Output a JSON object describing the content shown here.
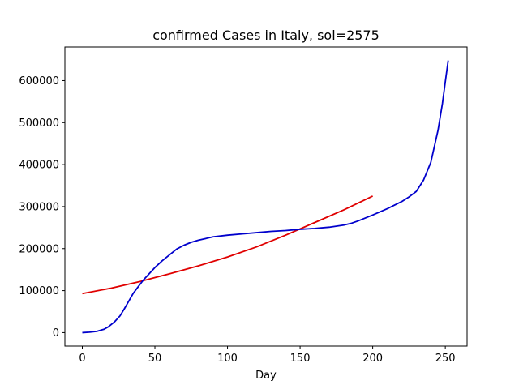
{
  "chart_data": {
    "type": "line",
    "title": "confirmed Cases in Italy, sol=2575",
    "xlabel": "Day",
    "ylabel": "",
    "xlim": [
      -12,
      265
    ],
    "ylim": [
      -32000,
      680000
    ],
    "x_ticks": [
      0,
      50,
      100,
      150,
      200,
      250
    ],
    "y_ticks": [
      0,
      100000,
      200000,
      300000,
      400000,
      500000,
      600000
    ],
    "grid": false,
    "series": [
      {
        "color": "#e00000",
        "x": [
          0,
          20,
          40,
          50,
          60,
          80,
          100,
          120,
          140,
          160,
          180,
          200
        ],
        "y": [
          93000,
          106000,
          122000,
          131000,
          140000,
          159000,
          180000,
          204000,
          232000,
          262000,
          292000,
          325000
        ]
      },
      {
        "color": "#0000cc",
        "x": [
          0,
          5,
          10,
          15,
          18,
          22,
          26,
          29,
          32,
          35,
          38,
          42,
          46,
          50,
          55,
          60,
          65,
          70,
          75,
          80,
          85,
          90,
          100,
          110,
          120,
          130,
          140,
          150,
          160,
          170,
          180,
          185,
          190,
          200,
          210,
          220,
          225,
          230,
          235,
          240,
          245,
          248,
          250,
          252
        ],
        "y": [
          0,
          1000,
          3000,
          8000,
          14000,
          25000,
          40000,
          57000,
          75000,
          93000,
          107000,
          125000,
          140000,
          155000,
          171000,
          185000,
          199000,
          208000,
          215000,
          220000,
          224000,
          228000,
          232000,
          235000,
          238000,
          241000,
          243000,
          246000,
          248000,
          251000,
          256000,
          260000,
          266000,
          280000,
          295000,
          312000,
          323000,
          336000,
          363000,
          405000,
          482000,
          545000,
          597000,
          648000
        ]
      }
    ]
  }
}
